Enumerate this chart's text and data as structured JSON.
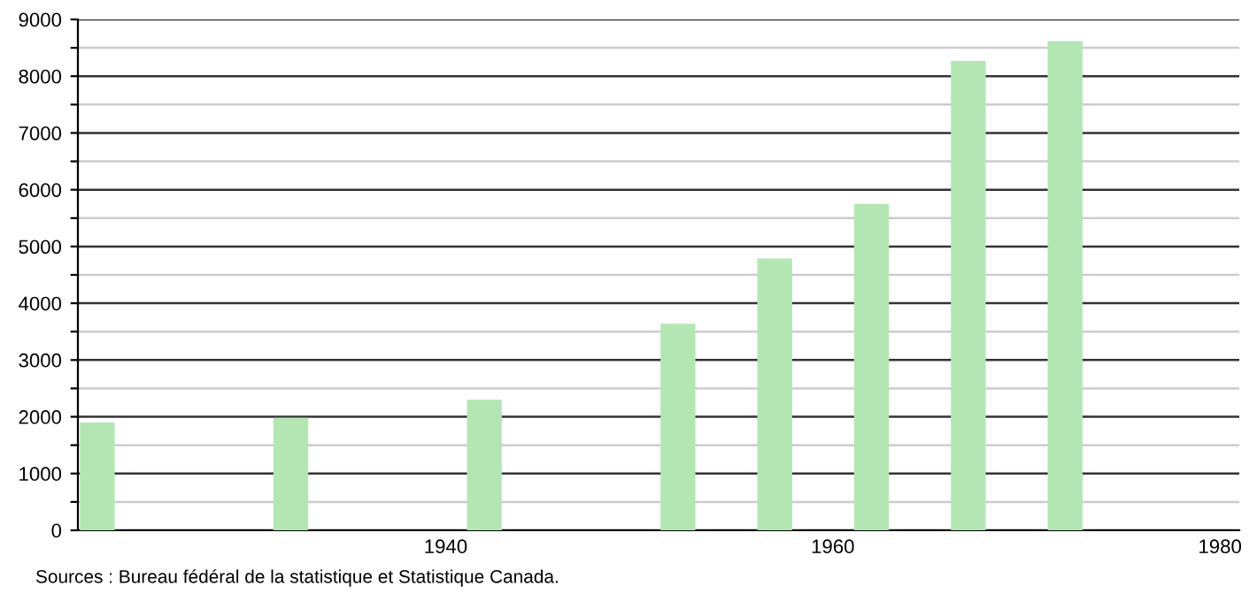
{
  "chart_data": {
    "type": "bar",
    "x": [
      1922,
      1932,
      1942,
      1952,
      1957,
      1962,
      1967,
      1972
    ],
    "values": [
      1900,
      1980,
      2300,
      3640,
      4790,
      5750,
      8270,
      8620
    ],
    "color": "#b3e6b3",
    "xlim": [
      1921,
      1981
    ],
    "xticks": [
      1940,
      1960,
      1980
    ],
    "ylim": [
      0,
      9000
    ],
    "yticks": [
      0,
      {
        "value": 500,
        "label": null
      },
      1000,
      {
        "value": 1500,
        "label": null
      },
      2000,
      {
        "value": 2500,
        "label": null
      },
      3000,
      {
        "value": 3500,
        "label": null
      },
      4000,
      {
        "value": 4500,
        "label": null
      },
      5000,
      {
        "value": 5500,
        "label": null
      },
      6000,
      {
        "value": 6500,
        "label": null
      },
      7000,
      {
        "value": 7500,
        "label": null
      },
      8000,
      {
        "value": 8500,
        "label": null
      },
      9000
    ],
    "grid": "y",
    "legend": false,
    "annotations": [
      "Sources : Bureau fédéral de la statistique et Statistique Canada."
    ]
  }
}
